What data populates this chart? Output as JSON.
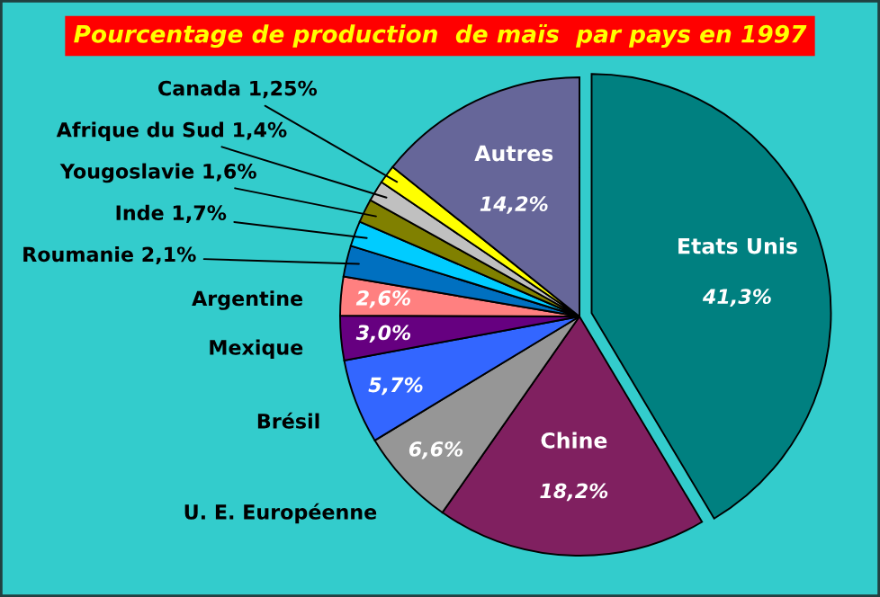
{
  "chart_data": {
    "type": "pie",
    "title": "Pourcentage de production  de maïs  par pays en 1997",
    "categories": [
      "Etats Unis",
      "Chine",
      "U. E. Européenne",
      "Brésil",
      "Mexique",
      "Argentine",
      "Roumanie",
      "Inde",
      "Yougoslavie",
      "Afrique du Sud",
      "Canada",
      "Autres"
    ],
    "values": [
      41.3,
      18.2,
      6.6,
      5.7,
      3.0,
      2.6,
      2.1,
      1.7,
      1.6,
      1.4,
      1.25,
      14.2
    ],
    "value_labels": [
      "41,3%",
      "18,2%",
      "6,6%",
      "5,7%",
      "3,0%",
      "2,6%",
      "2,1%",
      "1,7%",
      "1,6%",
      "1,4%",
      "1,25%",
      "14,2%"
    ],
    "colors": [
      "#008080",
      "#802060",
      "#969696",
      "#3366ff",
      "#660080",
      "#ff8080",
      "#0070c0",
      "#00ccff",
      "#808000",
      "#c0c0c0",
      "#ffff00",
      "#666699"
    ],
    "legend": false
  }
}
